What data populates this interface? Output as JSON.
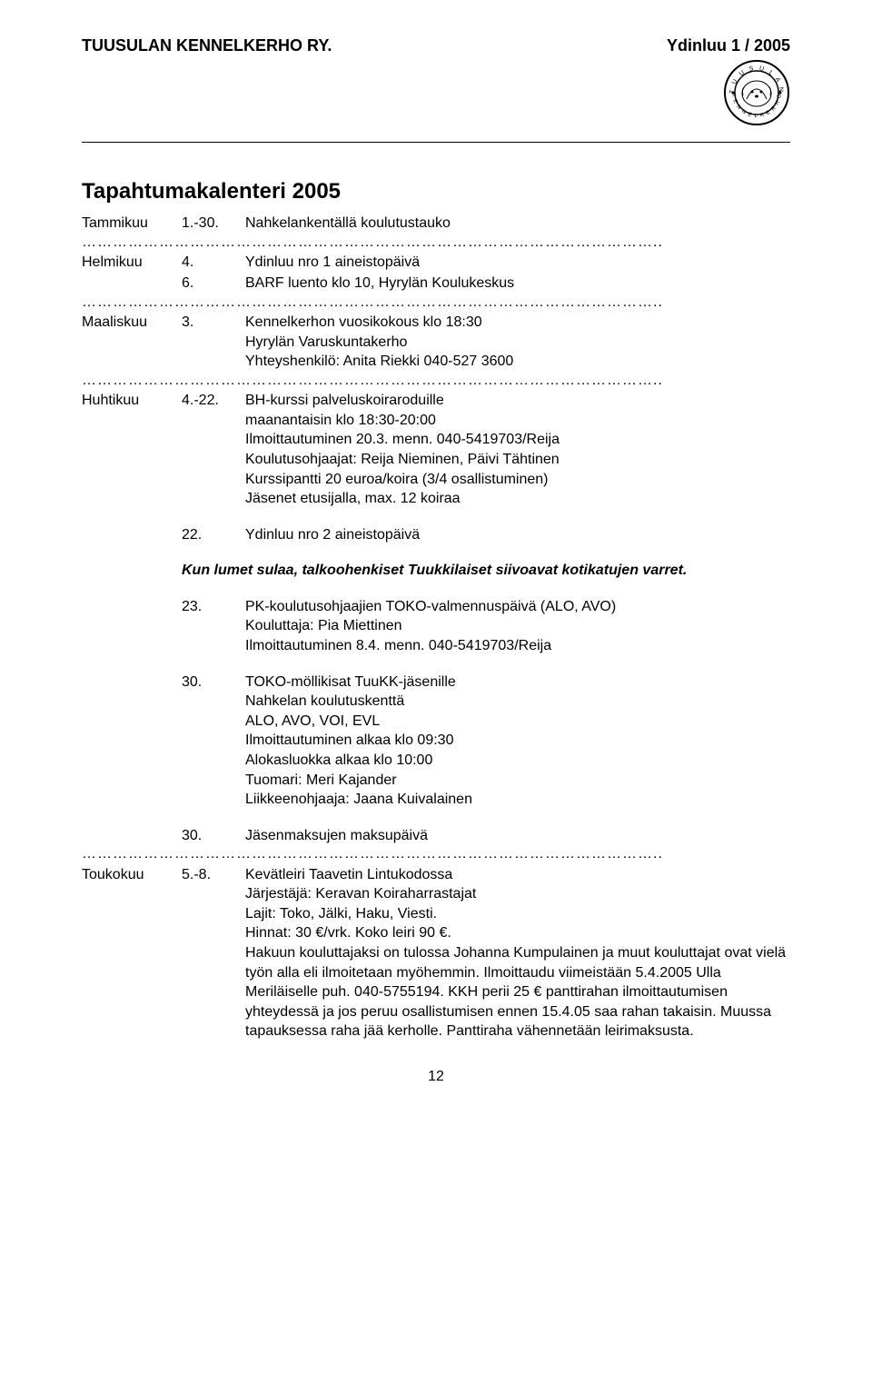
{
  "header": {
    "left": "TUUSULAN KENNELKERHO RY.",
    "right": "Ydinluu 1 / 2005"
  },
  "title": "Tapahtumakalenteri 2005",
  "dots": "…………………………………………………………………………………………………..",
  "rows": [
    {
      "month": "Tammikuu",
      "day": "1.-30.",
      "text": "Nahkelankentällä koulutustauko"
    },
    {
      "dots": true
    },
    {
      "month": "Helmikuu",
      "day": "4.",
      "text": "Ydinluu nro 1 aineistopäivä"
    },
    {
      "month": "",
      "day": "6.",
      "text": "BARF luento klo 10, Hyrylän Koulukeskus"
    },
    {
      "dots": true
    },
    {
      "month": "Maaliskuu",
      "day": "3.",
      "text": "Kennelkerhon vuosikokous klo 18:30\nHyrylän Varuskuntakerho\nYhteyshenkilö: Anita Riekki 040-527 3600"
    },
    {
      "dots": true
    },
    {
      "month": "Huhtikuu",
      "day": "4.-22.",
      "text": "BH-kurssi palveluskoiraroduille\nmaanantaisin klo 18:30-20:00\nIlmoittautuminen 20.3. menn. 040-5419703/Reija\nKoulutusohjaajat: Reija Nieminen, Päivi Tähtinen\nKurssipantti 20 euroa/koira (3/4 osallistuminen)\nJäsenet etusijalla, max. 12 koiraa"
    },
    {
      "month": "",
      "day": "22.",
      "text": "Ydinluu nro 2 aineistopäivä",
      "spaceBefore": true
    },
    {
      "italic": "Kun lumet sulaa, talkoohenkiset Tuukkilaiset siivoavat kotikatujen varret.",
      "spaceBefore": true
    },
    {
      "month": "",
      "day": "23.",
      "text": "PK-koulutusohjaajien TOKO-valmennuspäivä (ALO, AVO)\nKouluttaja: Pia Miettinen\nIlmoittautuminen 8.4. menn. 040-5419703/Reija",
      "spaceBefore": true
    },
    {
      "month": "",
      "day": "30.",
      "text": "TOKO-möllikisat TuuKK-jäsenille\nNahkelan koulutuskenttä\nALO, AVO, VOI, EVL\nIlmoittautuminen alkaa klo 09:30\nAlokasluokka alkaa klo 10:00\nTuomari: Meri Kajander\nLiikkeenohjaaja: Jaana Kuivalainen",
      "spaceBefore": true
    },
    {
      "month": "",
      "day": "30.",
      "text": "Jäsenmaksujen maksupäivä",
      "spaceBefore": true
    },
    {
      "dots": true
    },
    {
      "month": "Toukokuu",
      "day": "5.-8.",
      "text": "Kevätleiri Taavetin Lintukodossa\nJärjestäjä: Keravan Koiraharrastajat\nLajit: Toko, Jälki, Haku, Viesti.\nHinnat: 30 €/vrk. Koko leiri 90 €.\nHakuun kouluttajaksi on tulossa Johanna Kumpulainen ja muut kouluttajat ovat vielä työn alla eli ilmoitetaan myöhemmin. Ilmoittaudu viimeistään 5.4.2005 Ulla Meriläiselle puh. 040-5755194. KKH perii 25 € panttirahan ilmoittautumisen yhteydessä ja jos peruu osallistumisen ennen 15.4.05 saa rahan takaisin. Muussa tapauksessa raha jää kerholle. Panttiraha vähennetään leirimaksusta."
    }
  ],
  "pageNumber": "12",
  "colors": {
    "text": "#000000",
    "background": "#ffffff"
  },
  "logo": {
    "outer_text_top": "TUUSULA",
    "outer_text_bottom": "KENNELKERHO"
  }
}
